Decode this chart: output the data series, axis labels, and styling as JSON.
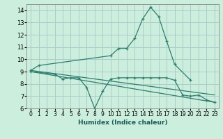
{
  "title": "",
  "xlabel": "Humidex (Indice chaleur)",
  "background_color": "#cceedd",
  "grid_color": "#aacccc",
  "line_color": "#2e7d6e",
  "xlim": [
    -0.5,
    23.5
  ],
  "ylim": [
    6,
    14.5
  ],
  "yticks": [
    6,
    7,
    8,
    9,
    10,
    11,
    12,
    13,
    14
  ],
  "xticks": [
    0,
    1,
    2,
    3,
    4,
    5,
    6,
    7,
    8,
    9,
    10,
    11,
    12,
    13,
    14,
    15,
    16,
    17,
    18,
    19,
    20,
    21,
    22,
    23
  ],
  "series": [
    {
      "x": [
        0,
        1,
        10,
        11,
        12,
        13,
        14,
        15,
        16,
        17,
        18,
        20
      ],
      "y": [
        9.1,
        9.5,
        10.3,
        10.9,
        10.9,
        11.7,
        13.3,
        14.25,
        13.5,
        11.5,
        9.6,
        8.3
      ],
      "has_markers": true
    },
    {
      "x": [
        0,
        3,
        4,
        5,
        6,
        7,
        8,
        9,
        10,
        11,
        12,
        13,
        14,
        15,
        16,
        17,
        18,
        19,
        20,
        21,
        22,
        23
      ],
      "y": [
        9.0,
        8.8,
        8.4,
        8.5,
        8.5,
        7.7,
        6.0,
        7.4,
        8.4,
        8.5,
        8.5,
        8.5,
        8.5,
        8.5,
        8.5,
        8.5,
        8.3,
        7.1,
        7.0,
        7.1,
        6.7,
        6.5
      ],
      "has_markers": true
    },
    {
      "x": [
        0,
        23
      ],
      "y": [
        9.1,
        7.1
      ],
      "has_markers": false
    },
    {
      "x": [
        0,
        23
      ],
      "y": [
        9.0,
        6.5
      ],
      "has_markers": false
    }
  ]
}
